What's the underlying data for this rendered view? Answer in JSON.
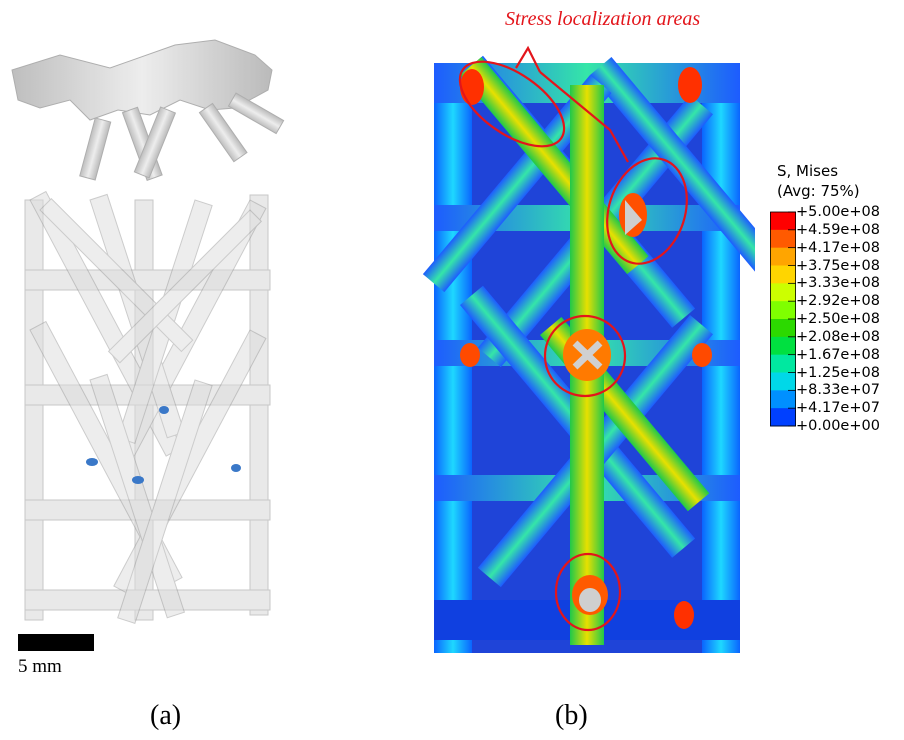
{
  "panel_a": {
    "caption": "(a)",
    "scale_bar_label": "5 mm"
  },
  "panel_b": {
    "caption": "(b)",
    "annotation": "Stress localization areas",
    "legend": {
      "title_line1": "S, Mises",
      "title_line2": "(Avg: 75%)",
      "ticks": [
        "+5.00e+08",
        "+4.59e+08",
        "+4.17e+08",
        "+3.75e+08",
        "+3.33e+08",
        "+2.92e+08",
        "+2.50e+08",
        "+2.08e+08",
        "+1.67e+08",
        "+1.25e+08",
        "+8.33e+07",
        "+4.17e+07",
        "+0.00e+00"
      ],
      "colors": [
        "#ff0000",
        "#ff5a00",
        "#ffa500",
        "#ffd500",
        "#ccff00",
        "#7fff00",
        "#2cd900",
        "#00e040",
        "#00e8a0",
        "#00d8e8",
        "#0090ff",
        "#0040ff",
        "#0000d8"
      ]
    },
    "colors": {
      "annotation_red": "#e3151b"
    }
  }
}
